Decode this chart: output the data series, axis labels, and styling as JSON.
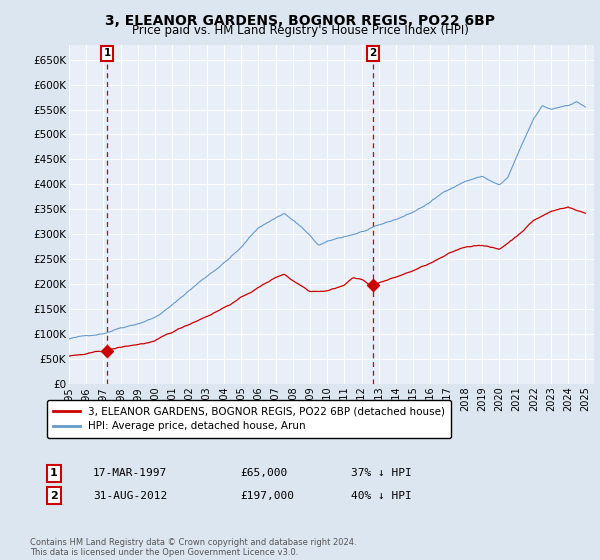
{
  "title": "3, ELEANOR GARDENS, BOGNOR REGIS, PO22 6BP",
  "subtitle": "Price paid vs. HM Land Registry's House Price Index (HPI)",
  "legend_line1": "3, ELEANOR GARDENS, BOGNOR REGIS, PO22 6BP (detached house)",
  "legend_line2": "HPI: Average price, detached house, Arun",
  "annotation1_label": "1",
  "annotation1_date": "17-MAR-1997",
  "annotation1_price": "£65,000",
  "annotation1_hpi": "37% ↓ HPI",
  "annotation1_year": 1997.21,
  "annotation1_value": 65000,
  "annotation2_label": "2",
  "annotation2_date": "31-AUG-2012",
  "annotation2_price": "£197,000",
  "annotation2_hpi": "40% ↓ HPI",
  "annotation2_year": 2012.67,
  "annotation2_value": 197000,
  "footer": "Contains HM Land Registry data © Crown copyright and database right 2024.\nThis data is licensed under the Open Government Licence v3.0.",
  "ylim": [
    0,
    680000
  ],
  "xlim_start": 1995.0,
  "xlim_end": 2025.5,
  "price_line_color": "#cc0000",
  "hpi_line_color": "#6699cc",
  "outer_bg_color": "#dce6f1",
  "plot_bg_color": "#e8eff8",
  "grid_color": "#ffffff",
  "annotation_line_color": "#cc0000",
  "yticks": [
    0,
    50000,
    100000,
    150000,
    200000,
    250000,
    300000,
    350000,
    400000,
    450000,
    500000,
    550000,
    600000,
    650000
  ],
  "ytick_labels": [
    "£0",
    "£50K",
    "£100K",
    "£150K",
    "£200K",
    "£250K",
    "£300K",
    "£350K",
    "£400K",
    "£450K",
    "£500K",
    "£550K",
    "£600K",
    "£650K"
  ],
  "xticks": [
    1995,
    1996,
    1997,
    1998,
    1999,
    2000,
    2001,
    2002,
    2003,
    2004,
    2005,
    2006,
    2007,
    2008,
    2009,
    2010,
    2011,
    2012,
    2013,
    2014,
    2015,
    2016,
    2017,
    2018,
    2019,
    2020,
    2021,
    2022,
    2023,
    2024,
    2025
  ]
}
